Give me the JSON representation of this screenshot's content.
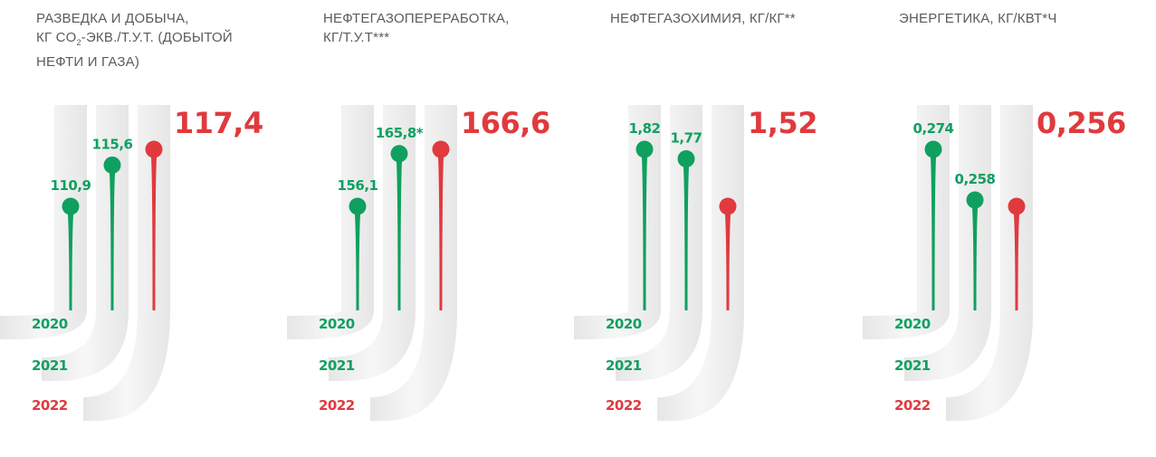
{
  "colors": {
    "green": "#0fa060",
    "red": "#e03a3e",
    "track": "#e6e6e6",
    "track_light": "#f7f7f7",
    "title": "#5b5b5b"
  },
  "years": [
    "2020",
    "2021",
    "2022"
  ],
  "chart_data": [
    {
      "type": "lollipop",
      "title": "РАЗВЕДКА И ДОБЫЧА,\nКГ CO2-ЭКВ./Т.У.Т. (ДОБЫТОЙ\nНЕФТИ И ГАЗА)",
      "categories": [
        "2020",
        "2021",
        "2022"
      ],
      "values": [
        110.9,
        115.6,
        117.4
      ],
      "labels": [
        "110,9",
        "115,6",
        "117,4"
      ],
      "colors": [
        "#0fa060",
        "#0fa060",
        "#e03a3e"
      ]
    },
    {
      "type": "lollipop",
      "title": "НЕФТЕГАЗОПЕРЕРАБОТКА,\nКГ/Т.У.Т***",
      "categories": [
        "2020",
        "2021",
        "2022"
      ],
      "values": [
        156.1,
        165.8,
        166.6
      ],
      "labels": [
        "156,1",
        "165,8*",
        "166,6"
      ],
      "colors": [
        "#0fa060",
        "#0fa060",
        "#e03a3e"
      ]
    },
    {
      "type": "lollipop",
      "title": "НЕФТЕГАЗОХИМИЯ, КГ/КГ**",
      "categories": [
        "2020",
        "2021",
        "2022"
      ],
      "values": [
        1.82,
        1.77,
        1.52
      ],
      "labels": [
        "1,82",
        "1,77",
        "1,52"
      ],
      "colors": [
        "#0fa060",
        "#0fa060",
        "#e03a3e"
      ]
    },
    {
      "type": "lollipop",
      "title": "ЭНЕРГЕТИКА, КГ/КВТ*Ч",
      "categories": [
        "2020",
        "2021",
        "2022"
      ],
      "values": [
        0.274,
        0.258,
        0.256
      ],
      "labels": [
        "0,274",
        "0,258",
        "0,256"
      ],
      "colors": [
        "#0fa060",
        "#0fa060",
        "#e03a3e"
      ]
    }
  ]
}
